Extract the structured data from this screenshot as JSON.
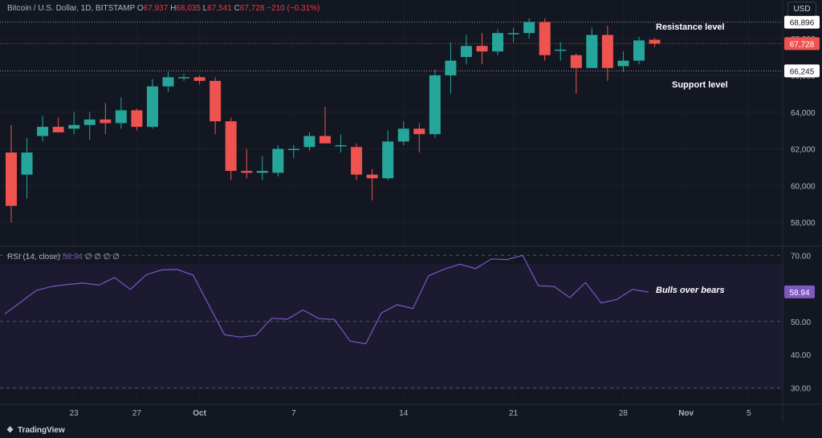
{
  "header": {
    "symbol": "Bitcoin / U.S. Dollar, 1D, BITSTAMP",
    "open_label": "O",
    "open": "67,937",
    "high_label": "H",
    "high": "68,035",
    "low_label": "L",
    "low": "67,541",
    "close_label": "C",
    "close": "67,728",
    "change": "−210 (−0.31%)"
  },
  "currency_button": "USD",
  "rsi_header": {
    "label": "RSI (14, close)",
    "value": "58.94",
    "hidden_values": "∅ ∅ ∅ ∅"
  },
  "annotations": {
    "resistance": "Resistance level",
    "support": "Support level",
    "rsi_note": "Bulls over bears"
  },
  "brand": "TradingView",
  "colors": {
    "up": "#26a69a",
    "down": "#ef5350",
    "rsi_line": "#7e57c2",
    "background": "#131722"
  },
  "chart_data": [
    {
      "type": "candlestick",
      "title": "Bitcoin / U.S. Dollar, 1D, BITSTAMP",
      "x_start": "2024-09-19",
      "x_tick_labels": [
        "23",
        "27",
        "Oct",
        "7",
        "14",
        "21",
        "28",
        "Nov",
        "5"
      ],
      "y_tick_labels": [
        "58,000",
        "60,000",
        "62,000",
        "64,000",
        "66,000",
        "68,000"
      ],
      "ylim": [
        56700,
        70100
      ],
      "price_levels": [
        {
          "label": "Resistance level",
          "value": 68896,
          "badge": "68,896"
        },
        {
          "label": "Support level",
          "value": 66245,
          "badge": "66,245"
        },
        {
          "label": "last",
          "value": 67728,
          "badge": "67,728"
        }
      ],
      "candles": [
        {
          "date": "2024-09-19",
          "open": 61800,
          "high": 63300,
          "low": 58000,
          "close": 58900
        },
        {
          "date": "2024-09-20",
          "open": 60600,
          "high": 62600,
          "low": 59300,
          "close": 61800
        },
        {
          "date": "2024-09-21",
          "open": 62700,
          "high": 63800,
          "low": 62400,
          "close": 63200
        },
        {
          "date": "2024-09-22",
          "open": 63200,
          "high": 63700,
          "low": 62900,
          "close": 62900
        },
        {
          "date": "2024-09-23",
          "open": 63100,
          "high": 64000,
          "low": 62800,
          "close": 63300
        },
        {
          "date": "2024-09-24",
          "open": 63300,
          "high": 64000,
          "low": 62500,
          "close": 63600
        },
        {
          "date": "2024-09-25",
          "open": 63600,
          "high": 64500,
          "low": 62800,
          "close": 63400
        },
        {
          "date": "2024-09-26",
          "open": 63400,
          "high": 64800,
          "low": 63100,
          "close": 64100
        },
        {
          "date": "2024-09-27",
          "open": 64100,
          "high": 64200,
          "low": 63000,
          "close": 63200
        },
        {
          "date": "2024-09-28",
          "open": 63200,
          "high": 65800,
          "low": 63100,
          "close": 65400
        },
        {
          "date": "2024-09-29",
          "open": 65400,
          "high": 66200,
          "low": 65100,
          "close": 65900
        },
        {
          "date": "2024-09-30",
          "open": 65900,
          "high": 66100,
          "low": 65700,
          "close": 65900
        },
        {
          "date": "2024-10-01",
          "open": 65900,
          "high": 66000,
          "low": 65500,
          "close": 65700
        },
        {
          "date": "2024-10-02",
          "open": 65700,
          "high": 65900,
          "low": 62800,
          "close": 63500
        },
        {
          "date": "2024-10-03",
          "open": 63500,
          "high": 63700,
          "low": 60300,
          "close": 60800
        },
        {
          "date": "2024-10-04",
          "open": 60800,
          "high": 62000,
          "low": 60400,
          "close": 60700
        },
        {
          "date": "2024-10-05",
          "open": 60700,
          "high": 61600,
          "low": 60300,
          "close": 60800
        },
        {
          "date": "2024-10-06",
          "open": 60700,
          "high": 62200,
          "low": 60500,
          "close": 62000
        },
        {
          "date": "2024-10-07",
          "open": 62000,
          "high": 62200,
          "low": 61500,
          "close": 62000
        },
        {
          "date": "2024-10-08",
          "open": 62100,
          "high": 62900,
          "low": 61900,
          "close": 62700
        },
        {
          "date": "2024-10-09",
          "open": 62700,
          "high": 64300,
          "low": 62300,
          "close": 62300
        },
        {
          "date": "2024-10-10",
          "open": 62200,
          "high": 62800,
          "low": 61800,
          "close": 62200
        },
        {
          "date": "2024-10-11",
          "open": 62100,
          "high": 62300,
          "low": 60300,
          "close": 60600
        },
        {
          "date": "2024-10-12",
          "open": 60600,
          "high": 60900,
          "low": 59200,
          "close": 60400
        },
        {
          "date": "2024-10-13",
          "open": 60400,
          "high": 63000,
          "low": 60300,
          "close": 62400
        },
        {
          "date": "2024-10-14",
          "open": 62400,
          "high": 63500,
          "low": 62200,
          "close": 63100
        },
        {
          "date": "2024-10-15",
          "open": 63100,
          "high": 63400,
          "low": 61800,
          "close": 62800
        },
        {
          "date": "2024-10-16",
          "open": 62800,
          "high": 66300,
          "low": 62600,
          "close": 66000
        },
        {
          "date": "2024-10-17",
          "open": 66000,
          "high": 67800,
          "low": 65000,
          "close": 66800
        },
        {
          "date": "2024-10-18",
          "open": 67000,
          "high": 68200,
          "low": 66600,
          "close": 67600
        },
        {
          "date": "2024-10-19",
          "open": 67600,
          "high": 68300,
          "low": 66600,
          "close": 67300
        },
        {
          "date": "2024-10-20",
          "open": 67300,
          "high": 68500,
          "low": 67100,
          "close": 68300
        },
        {
          "date": "2024-10-21",
          "open": 68300,
          "high": 68600,
          "low": 67800,
          "close": 68300
        },
        {
          "date": "2024-10-22",
          "open": 68300,
          "high": 69100,
          "low": 68000,
          "close": 68900
        },
        {
          "date": "2024-10-23",
          "open": 68900,
          "high": 69100,
          "low": 66800,
          "close": 67100
        },
        {
          "date": "2024-10-24",
          "open": 67400,
          "high": 67800,
          "low": 66800,
          "close": 67400
        },
        {
          "date": "2024-10-25",
          "open": 67100,
          "high": 67200,
          "low": 65000,
          "close": 66400
        },
        {
          "date": "2024-10-26",
          "open": 66400,
          "high": 68600,
          "low": 66400,
          "close": 68200
        },
        {
          "date": "2024-10-27",
          "open": 68200,
          "high": 68700,
          "low": 65700,
          "close": 66400
        },
        {
          "date": "2024-10-28",
          "open": 66500,
          "high": 67300,
          "low": 66200,
          "close": 66800
        },
        {
          "date": "2024-10-29",
          "open": 66800,
          "high": 68100,
          "low": 66600,
          "close": 67900
        },
        {
          "date": "2024-10-30",
          "open": 67937,
          "high": 68035,
          "low": 67541,
          "close": 67728
        }
      ]
    },
    {
      "type": "line",
      "title": "RSI (14, close)",
      "x_start": "2024-09-19",
      "ylim": [
        25,
        72
      ],
      "y_tick_labels": [
        "30.00",
        "40.00",
        "50.00",
        "60.00",
        "70.00"
      ],
      "reference_levels": [
        70,
        50,
        30
      ],
      "current_value": "58.94",
      "series": [
        {
          "values": [
            52.3,
            55.8,
            59.4,
            60.6,
            61.2,
            61.6,
            61.0,
            63.3,
            59.7,
            64.1,
            65.6,
            65.7,
            64.0,
            55.0,
            46.0,
            45.3,
            45.8,
            51.0,
            50.7,
            53.5,
            50.9,
            50.6,
            44.1,
            43.3,
            52.6,
            55.1,
            53.9,
            63.8,
            65.8,
            67.3,
            66.0,
            68.9,
            68.7,
            70.0,
            60.8,
            60.6,
            57.2,
            61.8,
            55.6,
            56.7,
            59.7,
            58.9
          ]
        }
      ]
    }
  ]
}
